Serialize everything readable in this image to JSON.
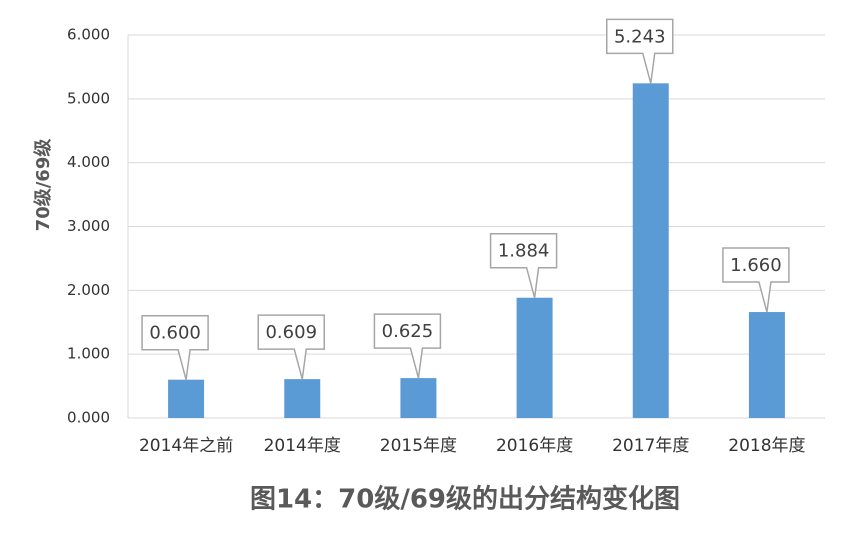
{
  "chart_data": {
    "type": "bar",
    "title": "图14：70级/69级的出分结构变化图",
    "y_label": "70级/69级",
    "categories": [
      "2014年之前",
      "2014年度",
      "2015年度",
      "2016年度",
      "2017年度",
      "2018年度"
    ],
    "values": [
      0.6,
      0.609,
      0.625,
      1.884,
      5.243,
      1.66
    ],
    "value_labels": [
      "0.600",
      "0.609",
      "0.625",
      "1.884",
      "5.243",
      "1.660"
    ],
    "color": "#5b9bd5",
    "ylim": [
      0,
      6
    ],
    "yticks": [
      {
        "value": 0,
        "label": "0.000"
      },
      {
        "value": 1,
        "label": "1.000"
      },
      {
        "value": 2,
        "label": "2.000"
      },
      {
        "value": 3,
        "label": "3.000"
      },
      {
        "value": 4,
        "label": "4.000"
      },
      {
        "value": 5,
        "label": "5.000"
      },
      {
        "value": 6,
        "label": "6.000"
      }
    ],
    "grid": true
  }
}
